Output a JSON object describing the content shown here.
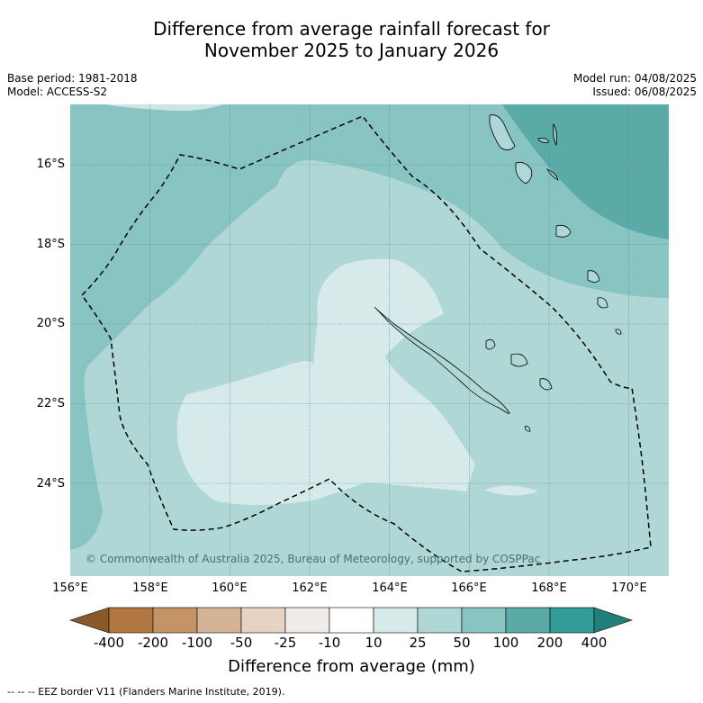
{
  "title": {
    "line1": "Difference from average rainfall forecast for",
    "line2": "November 2025 to January 2026"
  },
  "meta": {
    "base_period": "Base period: 1981-2018",
    "model": "Model: ACCESS-S2",
    "model_run": "Model run: 04/08/2025",
    "issued": "Issued: 06/08/2025"
  },
  "axes": {
    "lat_labels": [
      "16°S",
      "18°S",
      "20°S",
      "22°S",
      "24°S"
    ],
    "lon_labels": [
      "156°E",
      "158°E",
      "160°E",
      "162°E",
      "164°E",
      "166°E",
      "168°E",
      "170°E"
    ]
  },
  "map": {
    "copyright": "© Commonwealth of Australia 2025, Bureau of Meteorology, supported by COSPPac",
    "colors": {
      "ocean_50_100": "#88c4c2",
      "ocean_100_200": "#5aaaa8",
      "ocean_25_50": "#aed7d6",
      "ocean_10_25": "#d6eae9",
      "ocean_light_top": "#cde5e4"
    }
  },
  "colorbar": {
    "colors": [
      "#8a5a2b",
      "#b07840",
      "#c49366",
      "#d5b396",
      "#e6d3c2",
      "#f0ecea",
      "#ffffff",
      "#d6eae9",
      "#aed7d6",
      "#88c4c2",
      "#5aaaa8",
      "#339c98",
      "#217f7b"
    ],
    "tick_labels": [
      "-400",
      "-200",
      "-100",
      "-50",
      "-25",
      "-10",
      "10",
      "25",
      "50",
      "100",
      "200",
      "400"
    ],
    "title": "Difference from average (mm)"
  },
  "footer": "--  --  -- EEZ border V11 (Flanders Marine Institute, 2019)."
}
